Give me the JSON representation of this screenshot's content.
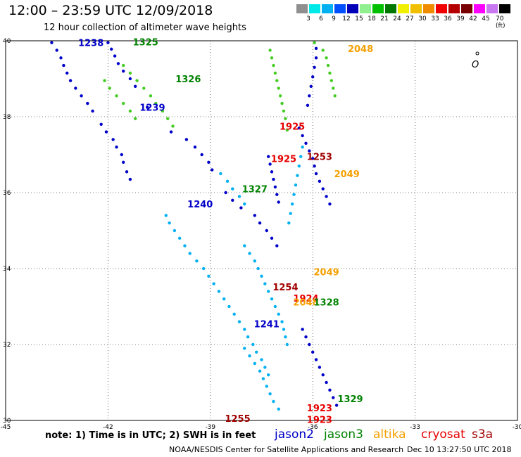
{
  "header": {
    "title": "12:00 – 23:59 UTC 12/09/2018",
    "subtitle": "12 hour collection of altimeter wave heights"
  },
  "color_scale": {
    "labels": [
      "3",
      "6",
      "9",
      "12",
      "15",
      "18",
      "21",
      "24",
      "27",
      "30",
      "33",
      "36",
      "39",
      "42",
      "45",
      "70 (ft)"
    ],
    "colors": [
      "#8f8f8f",
      "#00e8e8",
      "#00b0f0",
      "#0050ff",
      "#0000b8",
      "#90f090",
      "#00c000",
      "#007800",
      "#f0f000",
      "#f0c000",
      "#f08c00",
      "#f00000",
      "#b40000",
      "#780000",
      "#ff00ff",
      "#c878f0",
      "#000000"
    ]
  },
  "note": "note: 1) Time is in UTC; 2) SWH is in feet",
  "legend": [
    {
      "name": "jason2",
      "color": "#0000c8"
    },
    {
      "name": "jason3",
      "color": "#008200"
    },
    {
      "name": "altika",
      "color": "#f5a000"
    },
    {
      "name": "cryosat",
      "color": "#e60000"
    },
    {
      "name": "s3a",
      "color": "#a00000"
    }
  ],
  "footer": {
    "source": "NOAA/NESDIS Center for Satellite Applications and Research",
    "timestamp": "Dec 10 13:27:50 UTC 2018"
  },
  "chart_data": {
    "type": "scatter",
    "title": "12:00 – 23:59 UTC 12/09/2018",
    "subtitle": "12 hour collection of altimeter wave heights",
    "xlabel": "",
    "ylabel": "",
    "xlim": [
      -45,
      -30
    ],
    "ylim": [
      30,
      40
    ],
    "x_ticks": [
      "-45",
      "-42",
      "-39",
      "-36",
      "-33",
      "-30"
    ],
    "y_ticks": [
      "30",
      "32",
      "34",
      "36",
      "38",
      "40"
    ],
    "grid": true,
    "time_labels": [
      {
        "lon": -42.5,
        "lat": 39.95,
        "text": "1238",
        "color": "#0000c8"
      },
      {
        "lon": -40.9,
        "lat": 39.97,
        "text": "1325",
        "color": "#008200"
      },
      {
        "lon": -39.65,
        "lat": 39.0,
        "text": "1326",
        "color": "#008200"
      },
      {
        "lon": -40.7,
        "lat": 38.25,
        "text": "1239",
        "color": "#0000c8"
      },
      {
        "lon": -39.3,
        "lat": 35.7,
        "text": "1240",
        "color": "#0000c8"
      },
      {
        "lon": -37.7,
        "lat": 36.1,
        "text": "1327",
        "color": "#008200"
      },
      {
        "lon": -37.35,
        "lat": 32.55,
        "text": "1241",
        "color": "#0000c8"
      },
      {
        "lon": -36.6,
        "lat": 37.75,
        "text": "1925",
        "color": "#e60000"
      },
      {
        "lon": -36.85,
        "lat": 36.9,
        "text": "1925",
        "color": "#e60000"
      },
      {
        "lon": -35.8,
        "lat": 36.95,
        "text": "1253",
        "color": "#a00000"
      },
      {
        "lon": -35.0,
        "lat": 36.5,
        "text": "2049",
        "color": "#f5a000"
      },
      {
        "lon": -34.6,
        "lat": 39.8,
        "text": "2048",
        "color": "#f5a000"
      },
      {
        "lon": -35.6,
        "lat": 33.92,
        "text": "2049",
        "color": "#f5a000"
      },
      {
        "lon": -36.8,
        "lat": 33.52,
        "text": "1254",
        "color": "#a00000"
      },
      {
        "lon": -36.2,
        "lat": 33.22,
        "text": "1924",
        "color": "#e60000"
      },
      {
        "lon": -36.2,
        "lat": 33.12,
        "text": "2048",
        "color": "#f5a000"
      },
      {
        "lon": -35.6,
        "lat": 33.12,
        "text": "1328",
        "color": "#008200"
      },
      {
        "lon": -34.9,
        "lat": 30.57,
        "text": "1329",
        "color": "#008200"
      },
      {
        "lon": -35.8,
        "lat": 30.33,
        "text": "1923",
        "color": "#e60000"
      },
      {
        "lon": -35.8,
        "lat": 30.03,
        "text": "1923",
        "color": "#e60000"
      },
      {
        "lon": -38.2,
        "lat": 30.06,
        "text": "1255",
        "color": "#a00000"
      }
    ],
    "series": [
      {
        "name": "",
        "color": "#0000c8",
        "x": [
          -43.65,
          -43.5,
          -43.38,
          -43.3,
          -43.2,
          -43.1,
          -42.95,
          -42.78,
          -42.6,
          -42.45,
          -42.2,
          -42.05,
          -41.85,
          -41.75,
          -41.6,
          -41.55,
          -41.45,
          -41.35
        ],
        "y": [
          39.95,
          39.75,
          39.55,
          39.35,
          39.15,
          38.95,
          38.75,
          38.55,
          38.35,
          38.15,
          37.8,
          37.6,
          37.4,
          37.2,
          37.0,
          36.8,
          36.55,
          36.35
        ]
      },
      {
        "name": "",
        "color": "#44cc22",
        "x": [
          -42.1,
          -41.95,
          -41.75,
          -41.55,
          -41.35,
          -41.2
        ],
        "y": [
          38.95,
          38.75,
          38.55,
          38.35,
          38.15,
          37.95
        ]
      },
      {
        "name": "",
        "color": "#0000c8",
        "x": [
          -42.0,
          -41.9,
          -41.8,
          -41.7,
          -41.55,
          -41.35,
          -41.2
        ],
        "y": [
          39.95,
          39.78,
          39.6,
          39.4,
          39.2,
          39.0,
          38.8
        ]
      },
      {
        "name": "",
        "color": "#44cc22",
        "x": [
          -41.55,
          -41.35,
          -41.15,
          -40.95,
          -40.75,
          -40.6,
          -40.4,
          -40.25,
          -40.1
        ],
        "y": [
          39.35,
          39.15,
          38.95,
          38.75,
          38.55,
          38.35,
          38.15,
          37.95,
          37.75
        ]
      },
      {
        "name": "",
        "color": "#0000c8",
        "x": [
          -40.85,
          -40.15,
          -39.7,
          -39.45,
          -39.25,
          -39.05,
          -38.95
        ],
        "y": [
          38.25,
          37.6,
          37.4,
          37.2,
          37.0,
          36.8,
          36.6
        ]
      },
      {
        "name": "",
        "color": "#00b0f0",
        "x": [
          -38.7,
          -38.5,
          -38.35,
          -38.15,
          -38.0
        ],
        "y": [
          36.5,
          36.3,
          36.1,
          35.9,
          35.7
        ]
      },
      {
        "name": "",
        "color": "#0000c8",
        "x": [
          -38.55,
          -38.35,
          -38.1,
          -37.7,
          -37.55,
          -37.35,
          -37.2,
          -37.05
        ],
        "y": [
          36.0,
          35.8,
          35.6,
          35.4,
          35.2,
          35.0,
          34.8,
          34.6
        ]
      },
      {
        "name": "",
        "color": "#44cc22",
        "x": [
          -37.25,
          -37.2,
          -37.15,
          -37.1,
          -37.05,
          -37.0,
          -36.95,
          -36.9,
          -36.85,
          -36.8,
          -36.75
        ],
        "y": [
          39.75,
          39.55,
          39.35,
          39.15,
          38.95,
          38.75,
          38.55,
          38.35,
          38.15,
          37.95,
          37.65
        ]
      },
      {
        "name": "",
        "color": "#0000c8",
        "x": [
          -37.3,
          -37.25,
          -37.2,
          -37.15,
          -37.1,
          -37.05,
          -37.0
        ],
        "y": [
          36.95,
          36.75,
          36.55,
          36.35,
          36.15,
          35.95,
          35.75
        ]
      },
      {
        "name": "",
        "color": "#00b0f0",
        "x": [
          -40.3,
          -40.2,
          -40.05,
          -39.9,
          -39.75,
          -39.6,
          -39.4,
          -39.2,
          -39.05,
          -38.9,
          -38.75,
          -38.6,
          -38.45,
          -38.3,
          -38.15,
          -38.0,
          -37.9,
          -37.75,
          -37.65,
          -37.5,
          -37.4,
          -37.3
        ],
        "y": [
          35.4,
          35.2,
          35.0,
          34.8,
          34.6,
          34.4,
          34.2,
          34.0,
          33.8,
          33.6,
          33.4,
          33.2,
          33.0,
          32.8,
          32.6,
          32.4,
          32.2,
          32.0,
          31.8,
          31.6,
          31.4,
          31.2
        ]
      },
      {
        "name": "",
        "color": "#00b0f0",
        "x": [
          -38.0,
          -37.85,
          -37.7,
          -37.6,
          -37.5,
          -37.4,
          -37.3,
          -37.2,
          -37.1,
          -37.0,
          -36.9,
          -36.85,
          -36.8,
          -36.75
        ],
        "y": [
          34.6,
          34.4,
          34.2,
          34.0,
          33.8,
          33.6,
          33.4,
          33.2,
          33.0,
          32.8,
          32.6,
          32.4,
          32.2,
          32.0
        ]
      },
      {
        "name": "",
        "color": "#0000c8",
        "x": [
          -36.4,
          -36.3,
          -36.2,
          -36.1,
          -36.0,
          -35.95,
          -35.9,
          -35.8,
          -35.7,
          -35.6,
          -35.5
        ],
        "y": [
          37.7,
          37.5,
          37.3,
          37.1,
          36.9,
          36.7,
          36.5,
          36.3,
          36.1,
          35.9,
          35.7
        ]
      },
      {
        "name": "",
        "color": "#44cc22",
        "x": [
          -35.95,
          -35.7,
          -35.6,
          -35.55,
          -35.5,
          -35.45,
          -35.4,
          -35.35
        ],
        "y": [
          39.95,
          39.75,
          39.55,
          39.35,
          39.15,
          38.95,
          38.75,
          38.55
        ]
      },
      {
        "name": "",
        "color": "#0000c8",
        "x": [
          -35.9,
          -35.9,
          -35.95,
          -36.0,
          -36.05,
          -36.1,
          -36.15
        ],
        "y": [
          39.8,
          39.55,
          39.3,
          39.05,
          38.8,
          38.55,
          38.3
        ]
      },
      {
        "name": "",
        "color": "#00b0f0",
        "x": [
          -36.3,
          -36.35,
          -36.4,
          -36.45,
          -36.5,
          -36.55,
          -36.6,
          -36.65,
          -36.7
        ],
        "y": [
          37.2,
          36.95,
          36.7,
          36.45,
          36.2,
          35.95,
          35.7,
          35.45,
          35.2
        ]
      },
      {
        "name": "",
        "color": "#0000c8",
        "x": [
          -36.3,
          -36.2,
          -36.1,
          -36.0,
          -35.9,
          -35.8,
          -35.7,
          -35.6,
          -35.5,
          -35.4,
          -35.3
        ],
        "y": [
          32.4,
          32.2,
          32.0,
          31.8,
          31.6,
          31.4,
          31.2,
          31.0,
          30.8,
          30.6,
          30.4
        ]
      },
      {
        "name": "",
        "color": "#00b0f0",
        "x": [
          -38.0,
          -37.85,
          -37.7,
          -37.55,
          -37.45,
          -37.35,
          -37.25,
          -37.15,
          -37.0
        ],
        "y": [
          31.9,
          31.7,
          31.5,
          31.3,
          31.1,
          30.9,
          30.7,
          30.5,
          30.3
        ]
      }
    ]
  }
}
